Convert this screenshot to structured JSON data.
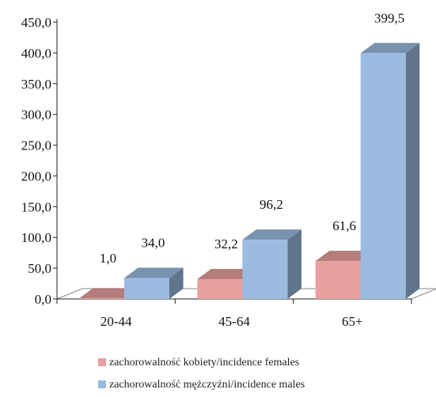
{
  "chart_data": {
    "type": "bar",
    "style": "3d-clustered",
    "categories": [
      "20-44",
      "45-64",
      "65+"
    ],
    "series": [
      {
        "name": "zachorowalność kobiety/incidence females",
        "values": [
          1.0,
          32.2,
          61.6
        ],
        "labels": [
          "1,0",
          "32,2",
          "61,6"
        ],
        "color": "#e8a09e"
      },
      {
        "name": "zachorowalność mężczyźni/incidence males",
        "values": [
          34.0,
          96.2,
          399.5
        ],
        "labels": [
          "34,0",
          "96,2",
          "399,5"
        ],
        "color": "#9bbbe0"
      }
    ],
    "ylim": [
      0,
      450
    ],
    "yticks": [
      {
        "v": 0,
        "t": "0,0"
      },
      {
        "v": 50,
        "t": "50,0"
      },
      {
        "v": 100,
        "t": "100,0"
      },
      {
        "v": 150,
        "t": "150,0"
      },
      {
        "v": 200,
        "t": "200,0"
      },
      {
        "v": 250,
        "t": "250,0"
      },
      {
        "v": 300,
        "t": "300,0"
      },
      {
        "v": 350,
        "t": "350,0"
      },
      {
        "v": 400,
        "t": "400,0"
      },
      {
        "v": 450,
        "t": "450,0"
      }
    ],
    "grid": false,
    "legend_position": "bottom"
  }
}
